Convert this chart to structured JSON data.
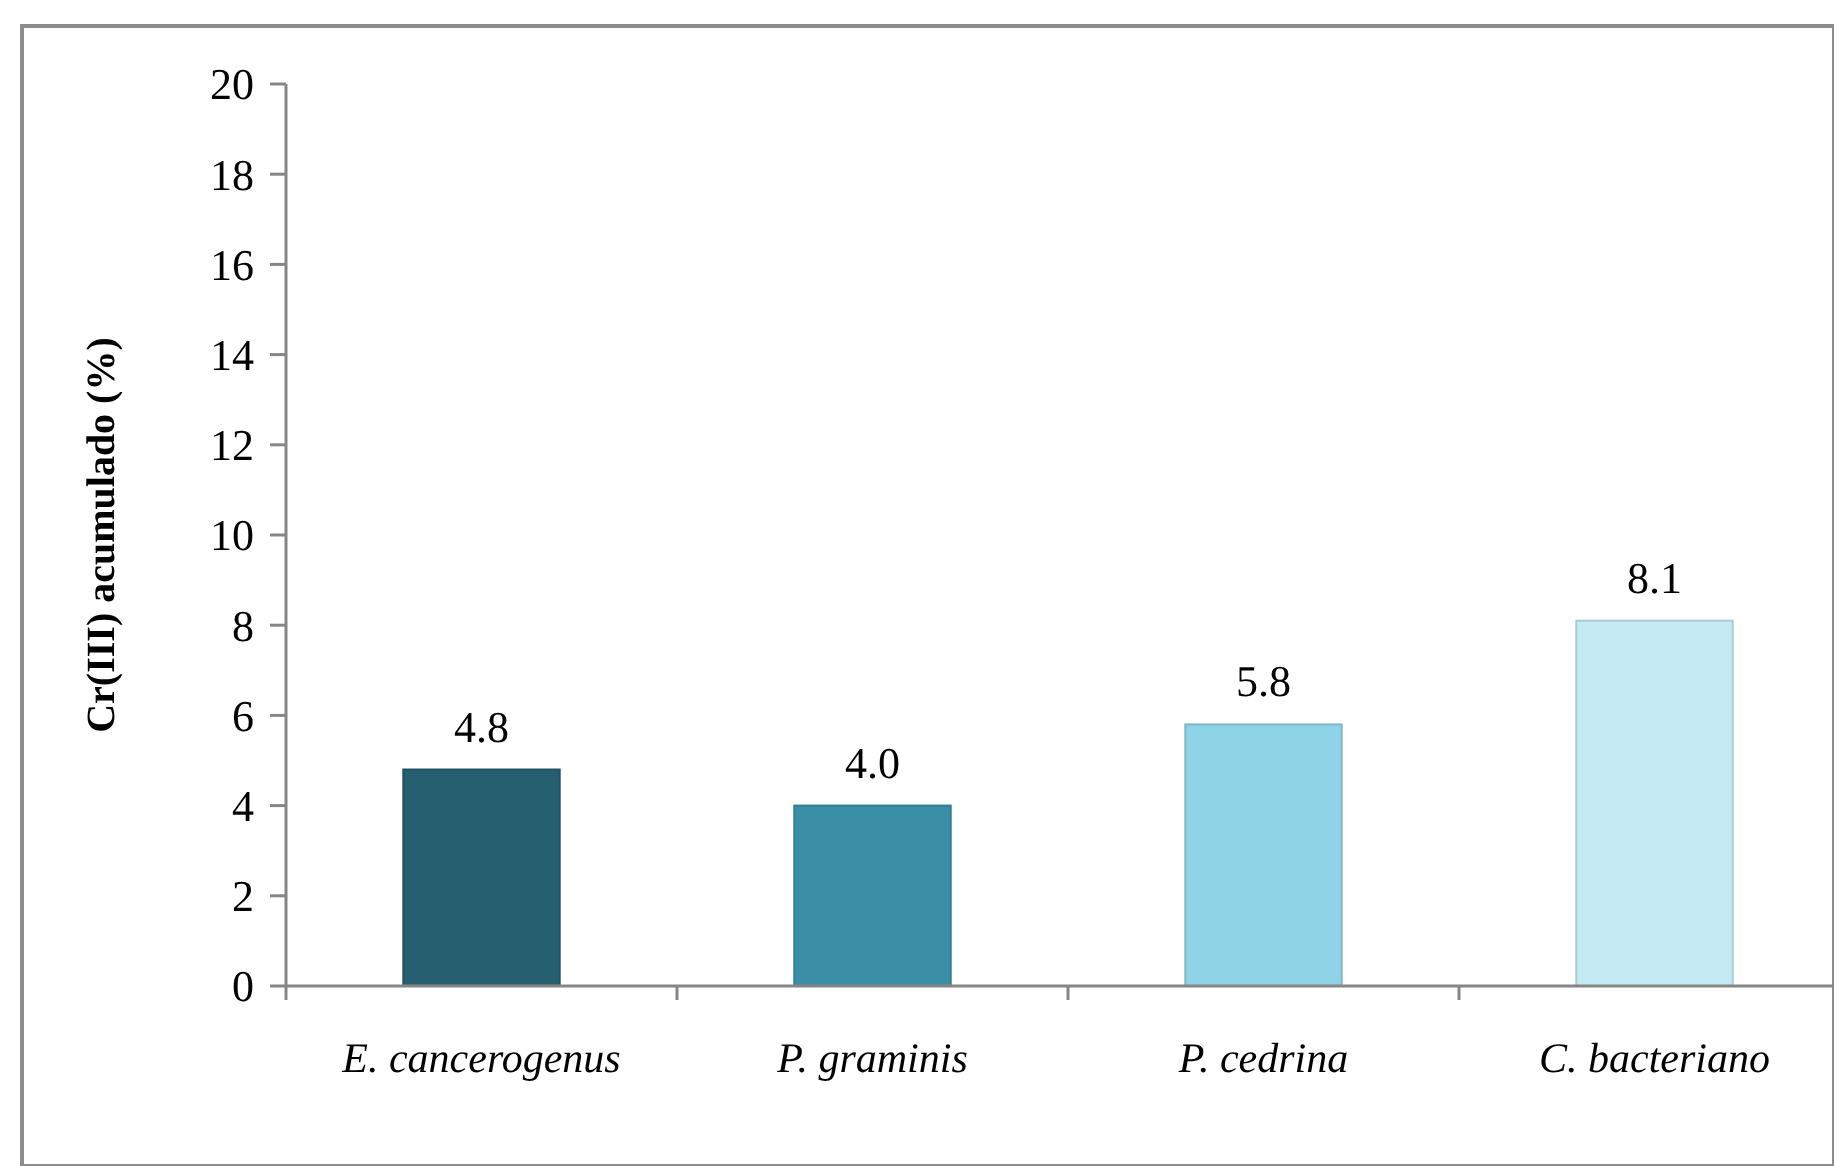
{
  "chart_data": {
    "type": "bar",
    "ylabel": "Cr(III) acumulado (%)",
    "categories": [
      "E. cancerogenus",
      "P. graminis",
      "P. cedrina",
      "C. bacteriano"
    ],
    "values": [
      4.8,
      4.0,
      5.8,
      8.1
    ],
    "colors": [
      "#265f6f",
      "#3a8fa6",
      "#8fd3e6",
      "#c4eaf4"
    ],
    "value_labels": [
      "4.8",
      "4.0",
      "5.8",
      "8.1"
    ],
    "ylim": [
      0,
      20
    ],
    "yticks": [
      0,
      2,
      4,
      6,
      8,
      10,
      12,
      14,
      16,
      18,
      20
    ],
    "grid": false
  }
}
